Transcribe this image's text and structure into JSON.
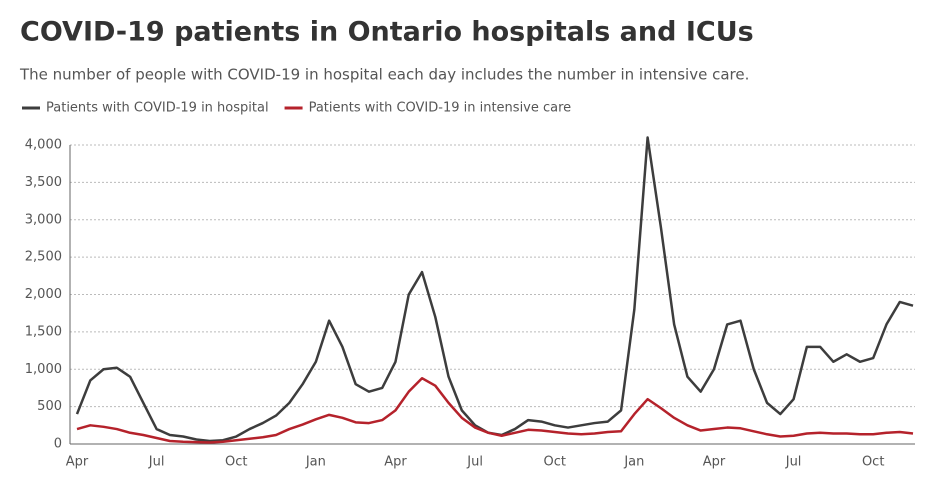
{
  "chart_data": {
    "type": "line",
    "title": "COVID-19 patients in Ontario hospitals and ICUs",
    "subtitle": "The number of people with COVID-19 in hospital each day includes the number in intensive care.",
    "categories": [
      "Apr",
      null,
      null,
      null,
      null,
      null,
      "Jul",
      null,
      null,
      null,
      null,
      null,
      "Oct",
      null,
      null,
      null,
      null,
      null,
      "Jan",
      null,
      null,
      null,
      null,
      null,
      "Apr",
      null,
      null,
      null,
      null,
      null,
      "Jul",
      null,
      null,
      null,
      null,
      null,
      "Oct",
      null,
      null,
      null,
      null,
      null,
      "Jan",
      null,
      null,
      null,
      null,
      null,
      "Apr",
      null,
      null,
      null,
      null,
      null,
      "Jul",
      null,
      null,
      null,
      null,
      null,
      "Oct",
      null,
      null,
      null
    ],
    "series": [
      {
        "name": "Patients with COVID-19 in hospital",
        "color": "#3d3d3d",
        "values": [
          400,
          850,
          1000,
          1020,
          900,
          550,
          200,
          120,
          100,
          60,
          40,
          50,
          100,
          200,
          280,
          380,
          550,
          800,
          1100,
          1650,
          1300,
          800,
          700,
          750,
          1100,
          2000,
          2300,
          1700,
          900,
          450,
          250,
          150,
          120,
          200,
          320,
          300,
          250,
          220,
          250,
          280,
          300,
          450,
          1800,
          4100,
          2900,
          1600,
          900,
          700,
          1000,
          1600,
          1650,
          1000,
          550,
          400,
          600,
          1300,
          1300,
          1100,
          1200,
          1100,
          1150,
          1600,
          1900,
          1850
        ]
      },
      {
        "name": "Patients with COVID-19 in intensive care",
        "color": "#b5222b",
        "values": [
          200,
          250,
          230,
          200,
          150,
          120,
          80,
          40,
          30,
          25,
          20,
          30,
          50,
          70,
          90,
          120,
          200,
          260,
          330,
          390,
          350,
          290,
          280,
          320,
          450,
          700,
          880,
          780,
          550,
          350,
          220,
          150,
          110,
          150,
          190,
          180,
          160,
          140,
          130,
          140,
          160,
          170,
          400,
          600,
          480,
          350,
          250,
          180,
          200,
          220,
          210,
          170,
          130,
          100,
          110,
          140,
          150,
          140,
          140,
          130,
          130,
          150,
          160,
          140
        ]
      }
    ],
    "ylim": [
      0,
      4000
    ],
    "yticks": [
      0,
      500,
      {
        "value": 1000,
        "label": "1,000"
      },
      {
        "value": 1500,
        "label": "1,500"
      },
      {
        "value": 2000,
        "label": "2,000"
      },
      {
        "value": 2500,
        "label": "2,500"
      },
      {
        "value": 3000,
        "label": "3,000"
      },
      {
        "value": 3500,
        "label": "3,500"
      },
      {
        "value": 4000,
        "label": "4,000"
      }
    ],
    "grid": true
  }
}
